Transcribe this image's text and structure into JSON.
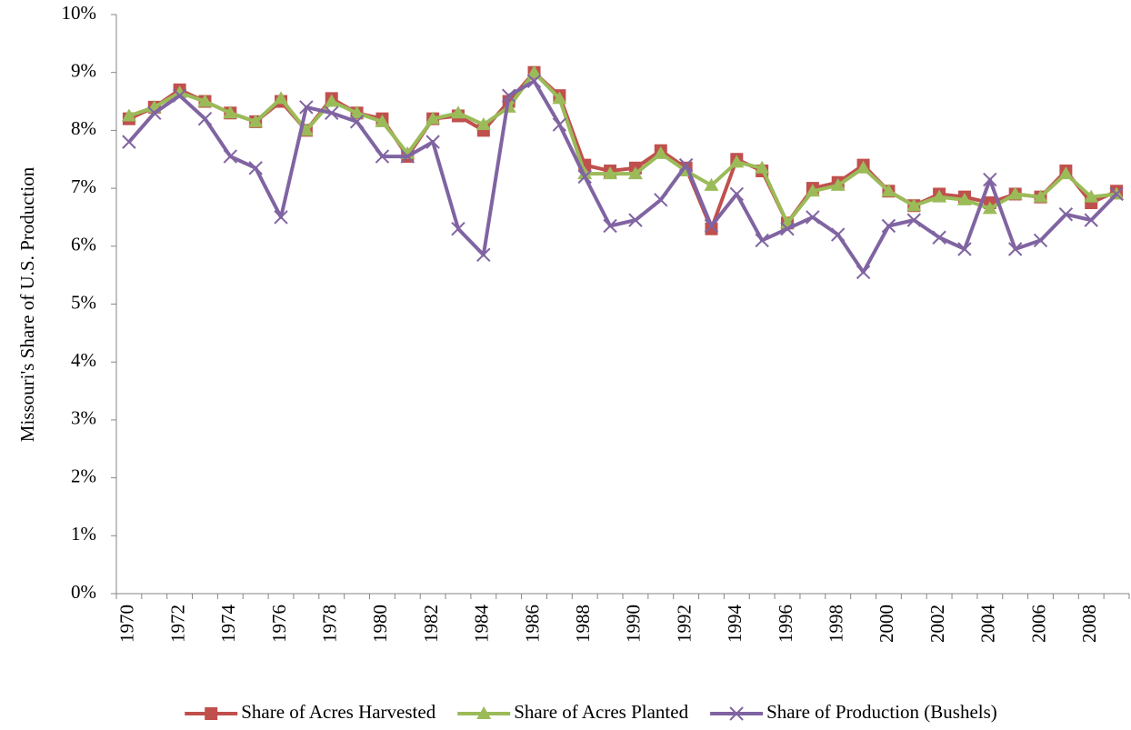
{
  "chart_data": {
    "type": "line",
    "y_label": "Missouri's Share of U.S. Production",
    "categories": [
      "1970",
      null,
      "1972",
      null,
      "1974",
      null,
      "1976",
      null,
      "1978",
      null,
      "1980",
      null,
      "1982",
      null,
      "1984",
      null,
      "1986",
      null,
      "1988",
      null,
      "1990",
      null,
      "1992",
      null,
      "1994",
      null,
      "1996",
      null,
      "1998",
      null,
      "2000",
      null,
      "2002",
      null,
      "2004",
      null,
      "2006",
      null,
      "2008",
      null
    ],
    "series": [
      {
        "name": "Share of Acres Harvested",
        "color": "#c0504d",
        "marker": "square",
        "values": [
          8.2,
          8.4,
          8.7,
          8.5,
          8.3,
          8.15,
          8.5,
          8.0,
          8.55,
          8.3,
          8.2,
          7.55,
          8.2,
          8.25,
          8.0,
          8.5,
          9.0,
          8.6,
          7.4,
          7.3,
          7.35,
          7.65,
          7.35,
          6.3,
          7.5,
          7.3,
          6.4,
          7.0,
          7.1,
          7.4,
          6.95,
          6.7,
          6.9,
          6.85,
          6.75,
          6.9,
          6.85,
          7.3,
          6.75,
          6.95
        ]
      },
      {
        "name": "Share of Acres Planted",
        "color": "#9bbb59",
        "marker": "triangle",
        "values": [
          8.25,
          8.4,
          8.65,
          8.5,
          8.3,
          8.15,
          8.55,
          8.0,
          8.5,
          8.3,
          8.15,
          7.6,
          8.2,
          8.3,
          8.1,
          8.4,
          9.0,
          8.55,
          7.25,
          7.25,
          7.25,
          7.6,
          7.3,
          7.05,
          7.45,
          7.35,
          6.4,
          6.95,
          7.05,
          7.35,
          6.95,
          6.7,
          6.85,
          6.8,
          6.65,
          6.9,
          6.85,
          7.25,
          6.85,
          6.9
        ]
      },
      {
        "name": "Share of Production (Bushels)",
        "color": "#8064a2",
        "marker": "x",
        "values": [
          7.8,
          8.3,
          8.6,
          8.2,
          7.55,
          7.35,
          6.5,
          8.4,
          8.3,
          8.15,
          7.55,
          7.55,
          7.8,
          6.3,
          5.85,
          8.6,
          8.85,
          8.1,
          7.2,
          6.35,
          6.45,
          6.8,
          7.4,
          6.35,
          6.9,
          6.1,
          6.3,
          6.5,
          6.2,
          5.55,
          6.35,
          6.45,
          6.15,
          5.95,
          7.15,
          5.95,
          6.1,
          6.55,
          6.45,
          6.9
        ]
      }
    ],
    "ylim": [
      0,
      10
    ],
    "yticks": [
      {
        "value": 0,
        "label": "0%"
      },
      {
        "value": 1,
        "label": "1%"
      },
      {
        "value": 2,
        "label": "2%"
      },
      {
        "value": 3,
        "label": "3%"
      },
      {
        "value": 4,
        "label": "4%"
      },
      {
        "value": 5,
        "label": "5%"
      },
      {
        "value": 6,
        "label": "6%"
      },
      {
        "value": 7,
        "label": "7%"
      },
      {
        "value": 8,
        "label": "8%"
      },
      {
        "value": 9,
        "label": "9%"
      },
      {
        "value": 10,
        "label": "10%"
      }
    ],
    "grid": false,
    "legend": "bottom"
  }
}
